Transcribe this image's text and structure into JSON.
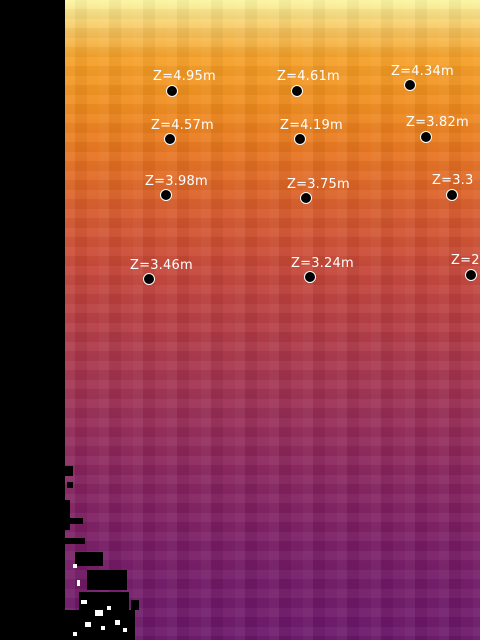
{
  "colors": {
    "left_band": "#000000",
    "colormap_top": "#fbf5a0",
    "colormap_mid": "#c64638",
    "colormap_bottom": "#6a176a",
    "marker_fill": "#000000",
    "marker_outline": "#ffffff",
    "label_color": "#ffffff"
  },
  "colormap": "inferno",
  "annotations": [
    {
      "label": "Z=4.95m"
    },
    {
      "label": "Z=4.61m"
    },
    {
      "label": "Z=4.34m"
    },
    {
      "label": "Z=4.57m"
    },
    {
      "label": "Z=4.19m"
    },
    {
      "label": "Z=3.82m"
    },
    {
      "label": "Z=3.98m"
    },
    {
      "label": "Z=3.75m"
    },
    {
      "label": "Z=3.3"
    },
    {
      "label": "Z=3.46m"
    },
    {
      "label": "Z=3.24m"
    },
    {
      "label": "Z=2"
    }
  ]
}
